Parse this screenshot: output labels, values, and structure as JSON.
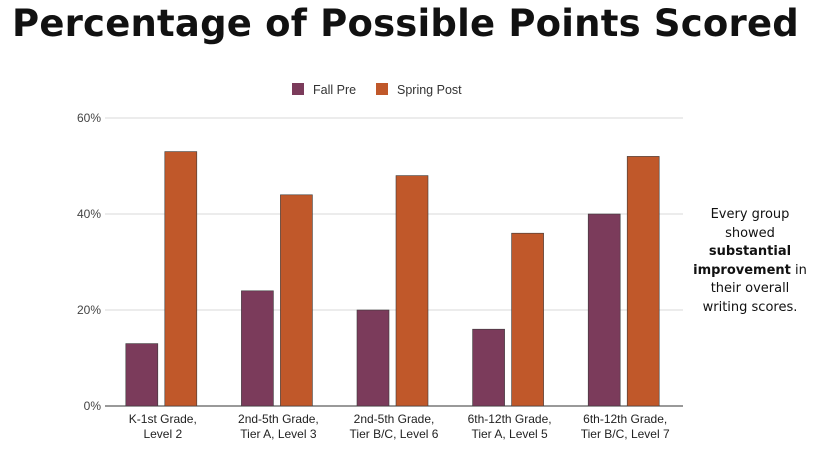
{
  "title": "Percentage of Possible Points Scored",
  "annotation": {
    "part1": "Every group showed ",
    "bold": "substantial improvement",
    "part2": " in their overall writing scores."
  },
  "colors": {
    "fall": "#7b3b5b",
    "spring": "#c0582a",
    "grid": "#d9d9d9",
    "axis": "#333333"
  },
  "chart_data": {
    "type": "bar",
    "title": "",
    "xlabel": "",
    "ylabel": "",
    "ylim": [
      0,
      60
    ],
    "y_ticks": [
      "0%",
      "20%",
      "40%",
      "60%"
    ],
    "y_tick_values": [
      0,
      20,
      40,
      60
    ],
    "categories": [
      [
        "K-1st Grade,",
        "Level 2"
      ],
      [
        "2nd-5th Grade,",
        "Tier A, Level 3"
      ],
      [
        "2nd-5th Grade,",
        "Tier B/C, Level 6"
      ],
      [
        "6th-12th Grade,",
        "Tier A, Level 5"
      ],
      [
        "6th-12th Grade,",
        "Tier B/C, Level 7"
      ]
    ],
    "series": [
      {
        "name": "Fall Pre",
        "values": [
          13,
          24,
          20,
          16,
          40
        ]
      },
      {
        "name": "Spring Post",
        "values": [
          53,
          44,
          48,
          36,
          52
        ]
      }
    ],
    "legend_position": "top",
    "grid": true
  }
}
